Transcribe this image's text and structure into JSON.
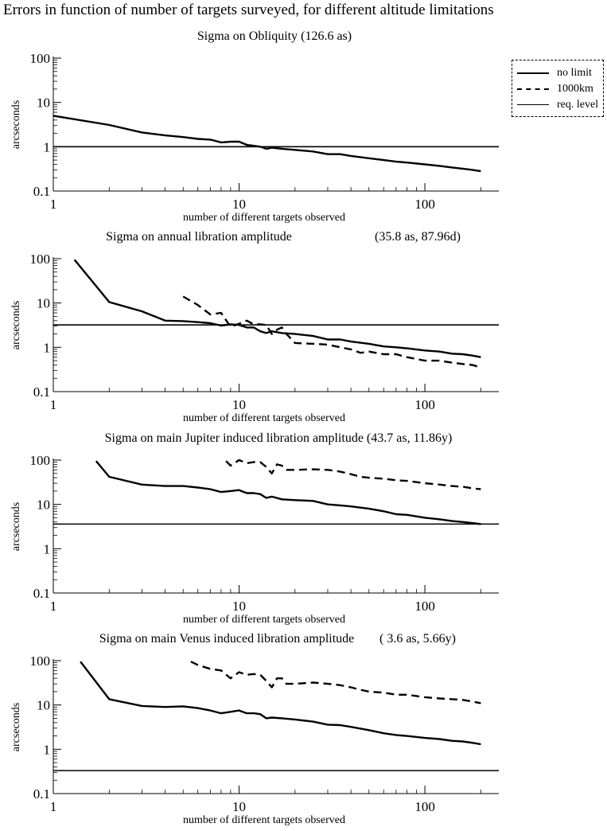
{
  "title": "Errors in function of number of targets surveyed, for different altitude limitations",
  "legend": {
    "no_limit": "no limit",
    "km1000": "1000km",
    "req_level": "req. level"
  },
  "chart_data": [
    {
      "type": "line",
      "title": "Sigma on Obliquity  (126.6 as)",
      "xlabel": "number of different targets observed",
      "ylabel": "arcseconds",
      "xscale": "log",
      "yscale": "log",
      "xlim": [
        1,
        250
      ],
      "ylim": [
        0.1,
        100
      ],
      "xticks": [
        "1",
        "10",
        "100"
      ],
      "yticks": [
        "0.1",
        "1",
        "10",
        "100"
      ],
      "req_level": 1.0,
      "series": [
        {
          "name": "no limit",
          "style": "solid-thick",
          "x": [
            1,
            2,
            3,
            4,
            5,
            6,
            7,
            8,
            9,
            10,
            11,
            12,
            13,
            14,
            15,
            17,
            20,
            25,
            30,
            35,
            40,
            50,
            60,
            70,
            80,
            100,
            120,
            140,
            160,
            180,
            200
          ],
          "y": [
            5.0,
            3.1,
            2.1,
            1.8,
            1.65,
            1.5,
            1.45,
            1.25,
            1.3,
            1.3,
            1.1,
            1.05,
            1.0,
            0.9,
            0.95,
            0.9,
            0.85,
            0.78,
            0.68,
            0.68,
            0.62,
            0.55,
            0.5,
            0.46,
            0.44,
            0.4,
            0.37,
            0.34,
            0.32,
            0.3,
            0.28
          ]
        }
      ]
    },
    {
      "type": "line",
      "title": "Sigma on annual libration amplitude",
      "title_extra": "(35.8 as, 87.96d)",
      "xlabel": "number of different targets observed",
      "ylabel": "arcseconds",
      "xscale": "log",
      "yscale": "log",
      "xlim": [
        1,
        250
      ],
      "ylim": [
        0.1,
        100
      ],
      "xticks": [
        "1",
        "10",
        "100"
      ],
      "yticks": [
        "0.1",
        "1",
        "10",
        "100"
      ],
      "req_level": 3.2,
      "series": [
        {
          "name": "no limit",
          "style": "solid-thick",
          "x": [
            1.3,
            2,
            3,
            4,
            5,
            6,
            7,
            8,
            9,
            10,
            11,
            12,
            13,
            14,
            15,
            17,
            20,
            25,
            30,
            35,
            40,
            50,
            60,
            70,
            80,
            100,
            120,
            140,
            160,
            180,
            200
          ],
          "y": [
            95,
            10.5,
            6.5,
            4.0,
            3.9,
            3.7,
            3.5,
            3.1,
            3.3,
            3.2,
            2.8,
            2.8,
            2.3,
            2.1,
            2.3,
            2.1,
            2.0,
            1.8,
            1.5,
            1.5,
            1.35,
            1.2,
            1.05,
            1.0,
            0.95,
            0.85,
            0.8,
            0.72,
            0.7,
            0.65,
            0.6
          ]
        },
        {
          "name": "1000km",
          "style": "dashed",
          "x": [
            5,
            6,
            7,
            8,
            9,
            10,
            11,
            12,
            13,
            14,
            15,
            16,
            17,
            18,
            20,
            25,
            30,
            35,
            40,
            45,
            50,
            60,
            70,
            80,
            100,
            120,
            140,
            160,
            180,
            200
          ],
          "y": [
            14,
            9.0,
            5.5,
            6.0,
            2.9,
            3.4,
            4.0,
            3.3,
            3.3,
            3.2,
            2.0,
            2.5,
            2.8,
            2.0,
            1.25,
            1.2,
            1.15,
            1.0,
            0.9,
            0.75,
            0.8,
            0.7,
            0.7,
            0.6,
            0.5,
            0.5,
            0.45,
            0.42,
            0.4,
            0.35
          ]
        }
      ]
    },
    {
      "type": "line",
      "title": "Sigma on main Jupiter induced libration amplitude (43.7 as, 11.86y)",
      "xlabel": "number of different targets observed",
      "ylabel": "arcseconds",
      "xscale": "log",
      "yscale": "log",
      "xlim": [
        1,
        250
      ],
      "ylim": [
        0.1,
        100
      ],
      "xticks": [
        "1",
        "10",
        "100"
      ],
      "yticks": [
        "0.1",
        "1",
        "10",
        "100"
      ],
      "req_level": 3.6,
      "series": [
        {
          "name": "no limit",
          "style": "solid-thick",
          "x": [
            1.7,
            2,
            3,
            4,
            5,
            6,
            7,
            8,
            9,
            10,
            11,
            12,
            13,
            14,
            15,
            17,
            20,
            25,
            30,
            35,
            40,
            50,
            60,
            70,
            80,
            100,
            120,
            140,
            160,
            180,
            200
          ],
          "y": [
            95,
            42,
            28,
            26,
            26,
            24,
            22,
            19,
            20,
            21,
            18,
            18,
            17,
            14,
            15,
            13,
            12.5,
            12,
            10,
            9.5,
            9,
            8,
            7,
            6,
            5.8,
            5,
            4.6,
            4.2,
            4.0,
            3.8,
            3.6
          ]
        },
        {
          "name": "1000km",
          "style": "dashed",
          "x": [
            8.5,
            9,
            10,
            11,
            12,
            13,
            14,
            15,
            16,
            17,
            18,
            20,
            25,
            30,
            35,
            40,
            45,
            50,
            60,
            70,
            80,
            100,
            120,
            140,
            160,
            180,
            200
          ],
          "y": [
            95,
            75,
            100,
            85,
            90,
            90,
            70,
            50,
            80,
            75,
            60,
            60,
            62,
            60,
            55,
            48,
            42,
            40,
            38,
            35,
            34,
            30,
            28,
            26,
            25,
            23,
            22
          ]
        }
      ]
    },
    {
      "type": "line",
      "title": "Sigma on main Venus induced libration amplitude",
      "title_extra": "( 3.6 as,  5.66y)",
      "xlabel": "number of different targets observed",
      "ylabel": "arcseconds",
      "xscale": "log",
      "yscale": "log",
      "xlim": [
        1,
        250
      ],
      "ylim": [
        0.1,
        100
      ],
      "xticks": [
        "1",
        "10",
        "100"
      ],
      "yticks": [
        "0.1",
        "1",
        "10",
        "100"
      ],
      "req_level": 0.33,
      "series": [
        {
          "name": "no limit",
          "style": "solid-thick",
          "x": [
            1.4,
            2,
            3,
            4,
            5,
            6,
            7,
            8,
            9,
            10,
            11,
            12,
            13,
            14,
            15,
            17,
            20,
            25,
            30,
            35,
            40,
            50,
            60,
            70,
            80,
            100,
            120,
            140,
            160,
            180,
            200
          ],
          "y": [
            95,
            13.5,
            9.5,
            9.0,
            9.3,
            8.5,
            7.5,
            6.5,
            7.0,
            7.5,
            6.5,
            6.5,
            6.2,
            5.0,
            5.2,
            5.0,
            4.7,
            4.2,
            3.6,
            3.5,
            3.2,
            2.7,
            2.3,
            2.1,
            2.0,
            1.8,
            1.7,
            1.55,
            1.5,
            1.4,
            1.3
          ]
        },
        {
          "name": "1000km",
          "style": "dashed",
          "x": [
            5.5,
            6,
            7,
            8,
            9,
            10,
            11,
            12,
            13,
            14,
            15,
            16,
            17,
            18,
            20,
            25,
            30,
            35,
            40,
            45,
            50,
            60,
            70,
            80,
            100,
            120,
            140,
            160,
            180,
            200
          ],
          "y": [
            95,
            80,
            65,
            60,
            40,
            55,
            48,
            50,
            48,
            35,
            25,
            40,
            40,
            30,
            30,
            32,
            30,
            28,
            25,
            22,
            20,
            19,
            17,
            17,
            15,
            14,
            13.5,
            13,
            12,
            11
          ]
        }
      ]
    }
  ]
}
